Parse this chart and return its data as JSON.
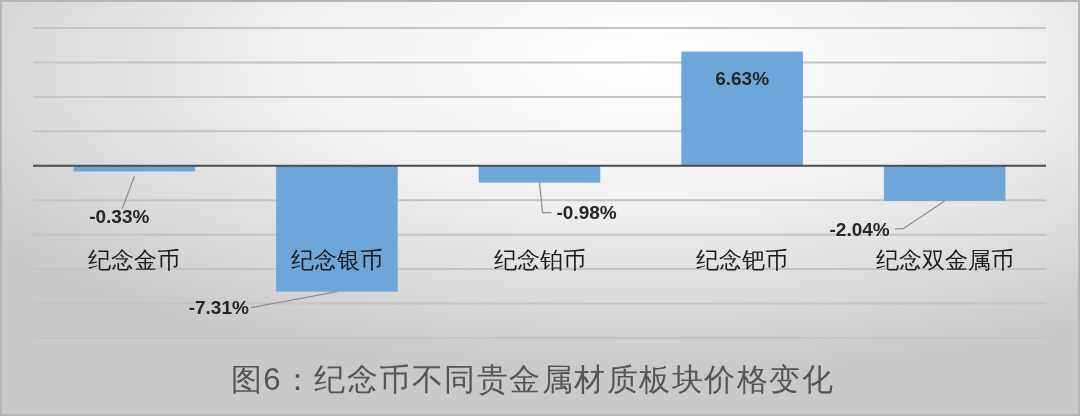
{
  "chart_data": {
    "type": "bar",
    "title": "图6：纪念币不同贵金属材质板块价格变化",
    "categories": [
      "纪念金币",
      "纪念银币",
      "纪念铂币",
      "纪念钯币",
      "纪念双金属币"
    ],
    "values": [
      -0.33,
      -7.31,
      -0.98,
      6.63,
      -2.04
    ],
    "value_labels": [
      "-0.33%",
      "-7.31%",
      "-0.98%",
      "6.63%",
      "-2.04%"
    ],
    "color": "#6fa6da",
    "ylim": [
      -10,
      8
    ],
    "yticks": [
      {
        "value": -10,
        "label": null
      },
      {
        "value": -8,
        "label": null
      },
      {
        "value": -6,
        "label": null
      },
      {
        "value": -4,
        "label": null
      },
      {
        "value": -2,
        "label": null
      },
      {
        "value": 0,
        "label": null
      },
      {
        "value": 2,
        "label": null
      },
      {
        "value": 4,
        "label": null
      },
      {
        "value": 6,
        "label": null
      },
      {
        "value": 8,
        "label": null
      }
    ],
    "grid": "y",
    "tick_labels": "x"
  }
}
